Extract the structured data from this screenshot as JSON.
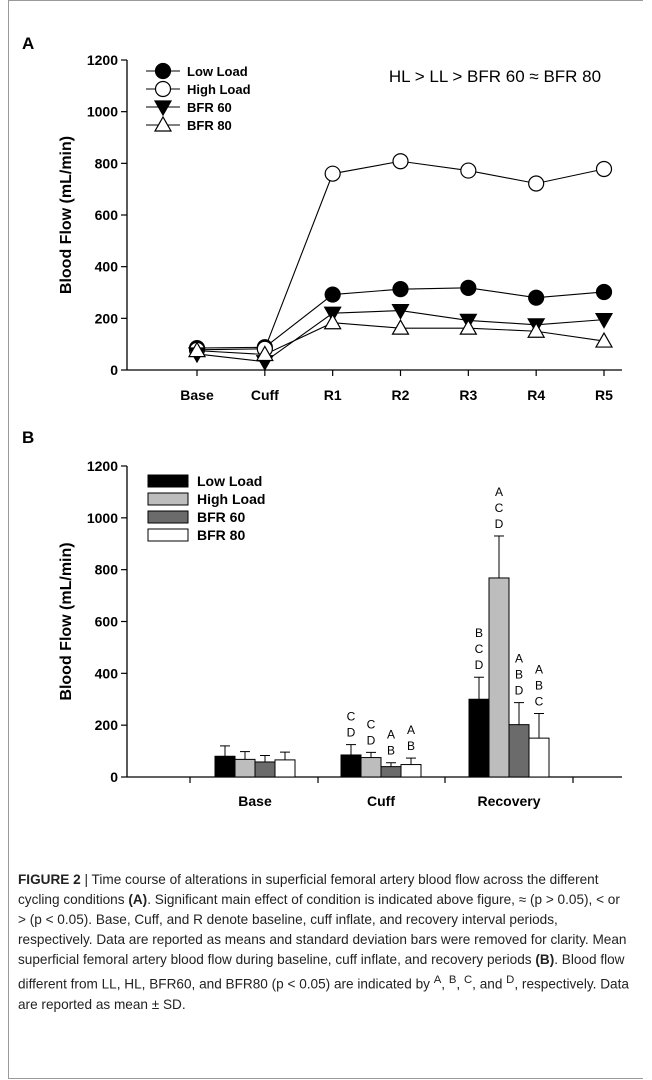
{
  "chart_data": [
    {
      "panel": "A",
      "type": "line",
      "ylabel": "Blood Flow (mL/min)",
      "xlabel": "",
      "categories": [
        "Base",
        "Cuff",
        "R1",
        "R2",
        "R3",
        "R4",
        "R5"
      ],
      "ylim": [
        0,
        1200
      ],
      "yticks": [
        0,
        200,
        400,
        600,
        800,
        1000,
        1200
      ],
      "legend_position": "top-left",
      "annotation": "HL > LL > BFR 60 ≈ BFR 80",
      "series": [
        {
          "name": "Low Load",
          "marker": "filled-circle",
          "values": [
            85,
            88,
            292,
            313,
            318,
            280,
            302
          ]
        },
        {
          "name": "High Load",
          "marker": "open-circle",
          "values": [
            78,
            82,
            760,
            808,
            772,
            722,
            778
          ]
        },
        {
          "name": "BFR 60",
          "marker": "filled-triangle-down",
          "values": [
            62,
            32,
            220,
            230,
            192,
            175,
            195
          ]
        },
        {
          "name": "BFR 80",
          "marker": "open-triangle-up",
          "values": [
            75,
            60,
            183,
            162,
            162,
            150,
            112
          ]
        }
      ]
    },
    {
      "panel": "B",
      "type": "bar",
      "ylabel": "Blood Flow (mL/min)",
      "xlabel": "",
      "categories": [
        "Base",
        "Cuff",
        "Recovery"
      ],
      "ylim": [
        0,
        1200
      ],
      "yticks": [
        0,
        200,
        400,
        600,
        800,
        1000,
        1200
      ],
      "legend_position": "top-left",
      "series": [
        {
          "name": "Low Load",
          "color": "#000000",
          "values": [
            80,
            85,
            300
          ],
          "sd": [
            40,
            40,
            85
          ],
          "labels": [
            [],
            [
              "C",
              "D"
            ],
            [
              "B",
              "C",
              "D"
            ]
          ]
        },
        {
          "name": "High Load",
          "color": "#bdbdbd",
          "values": [
            68,
            75,
            768
          ],
          "sd": [
            30,
            20,
            162
          ],
          "labels": [
            [],
            [
              "C",
              "D"
            ],
            [
              "A",
              "C",
              "D"
            ]
          ]
        },
        {
          "name": "BFR 60",
          "color": "#6b6b6b",
          "values": [
            58,
            40,
            202
          ],
          "sd": [
            25,
            15,
            85
          ],
          "labels": [
            [],
            [
              "A",
              "B"
            ],
            [
              "A",
              "B",
              "D"
            ]
          ]
        },
        {
          "name": "BFR 80",
          "color": "#ffffff",
          "values": [
            66,
            48,
            150
          ],
          "sd": [
            30,
            25,
            95
          ],
          "labels": [
            [],
            [
              "A",
              "B"
            ],
            [
              "A",
              "B",
              "C"
            ]
          ]
        }
      ]
    }
  ],
  "caption": {
    "label": "FIGURE 2",
    "separator": " | ",
    "s1": "Time course of alterations in superficial femoral artery blood flow across the different cycling conditions ",
    "ref_a": "(A)",
    "s2": ". Significant main effect of condition is indicated above figure, ≈ (p > 0.05), < or > (p < 0.05). Base, Cuff, and R denote baseline, cuff inflate, and recovery interval periods, respectively. Data are reported as means and standard deviation bars were removed for clarity. Mean superficial femoral artery blood flow during baseline, cuff inflate, and recovery periods ",
    "ref_b": "(B)",
    "s3": ". Blood flow different from LL, HL, BFR60, and BFR80 (p < 0.05) are indicated by ",
    "sup_a": "A",
    "comma1": ", ",
    "sup_b": "B",
    "comma2": ", ",
    "sup_c": "C",
    "and": ", and ",
    "sup_d": "D",
    "s4": ", respectively. Data are reported as mean ± SD."
  }
}
